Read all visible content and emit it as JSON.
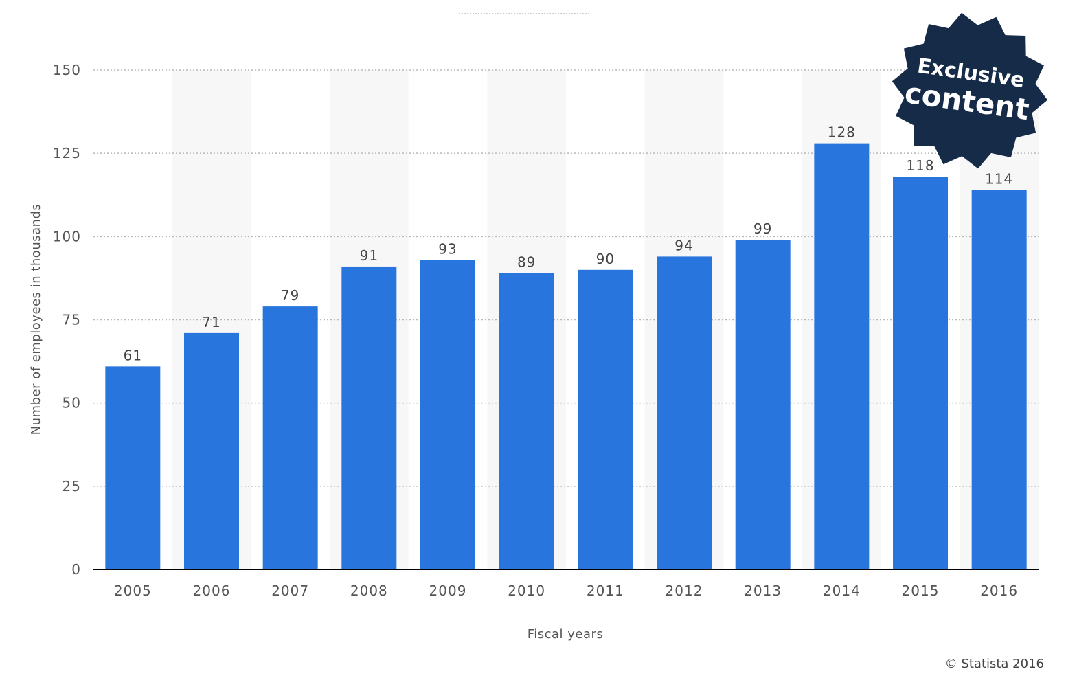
{
  "chart_data": {
    "type": "bar",
    "title": "",
    "xlabel": "Fiscal years",
    "ylabel": "Number of employees in thousands",
    "categories": [
      "2005",
      "2006",
      "2007",
      "2008",
      "2009",
      "2010",
      "2011",
      "2012",
      "2013",
      "2014",
      "2015",
      "2016"
    ],
    "values": [
      61,
      71,
      79,
      91,
      93,
      89,
      90,
      94,
      99,
      128,
      118,
      114
    ],
    "data_labels": [
      "61",
      "71",
      "79",
      "91",
      "93",
      "89",
      "90",
      "94",
      "99",
      "128",
      "118",
      "114"
    ],
    "ylim": [
      0,
      150
    ],
    "yticks": [
      0,
      25,
      50,
      75,
      100,
      125,
      150
    ],
    "ytick_labels": [
      "0",
      "25",
      "50",
      "75",
      "100",
      "125",
      "150"
    ],
    "grid": true,
    "legend": "none",
    "bar_color": "#2876dd",
    "stripe_color": "#f7f7f7"
  },
  "badge": {
    "line1": "Exclusive",
    "line2": "content",
    "color": "#152b47"
  },
  "copyright": "© Statista 2016"
}
